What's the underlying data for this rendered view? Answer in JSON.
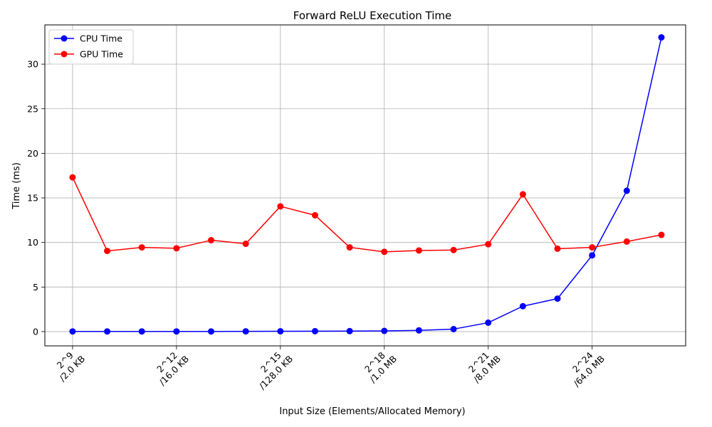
{
  "chart_data": {
    "type": "line",
    "title": "Forward ReLU Execution Time",
    "xlabel": "Input Size (Elements/Allocated Memory)",
    "ylabel": "Time (ms)",
    "x": [
      9,
      10,
      11,
      12,
      13,
      14,
      15,
      16,
      17,
      18,
      19,
      20,
      21,
      22,
      23,
      24,
      25,
      26
    ],
    "xticks": [
      {
        "x": 9,
        "line1": "2^9",
        "line2": "/2.0 KB"
      },
      {
        "x": 12,
        "line1": "2^12",
        "line2": "/16.0 KB"
      },
      {
        "x": 15,
        "line1": "2^15",
        "line2": "/128.0 KB"
      },
      {
        "x": 18,
        "line1": "2^18",
        "line2": "/1.0 MB"
      },
      {
        "x": 21,
        "line1": "2^21",
        "line2": "/8.0 MB"
      },
      {
        "x": 24,
        "line1": "2^24",
        "line2": "/64.0 MB"
      }
    ],
    "yticks": [
      0,
      5,
      10,
      15,
      20,
      25,
      30
    ],
    "xlim": [
      8.2,
      26.7
    ],
    "ylim": [
      -1.6,
      34.4
    ],
    "grid": true,
    "legend_position": "top-left",
    "series": [
      {
        "name": "CPU Time",
        "color": "#0000ff",
        "values": [
          0.02,
          0.02,
          0.02,
          0.02,
          0.02,
          0.03,
          0.04,
          0.05,
          0.06,
          0.08,
          0.14,
          0.28,
          1.0,
          2.85,
          3.7,
          8.55,
          15.8,
          33.0
        ]
      },
      {
        "name": "GPU Time",
        "color": "#ff0000",
        "values": [
          17.3,
          9.05,
          9.45,
          9.35,
          10.25,
          9.85,
          14.05,
          13.05,
          9.45,
          8.95,
          9.1,
          9.15,
          9.8,
          15.4,
          9.3,
          9.45,
          10.1,
          10.85
        ]
      }
    ]
  }
}
